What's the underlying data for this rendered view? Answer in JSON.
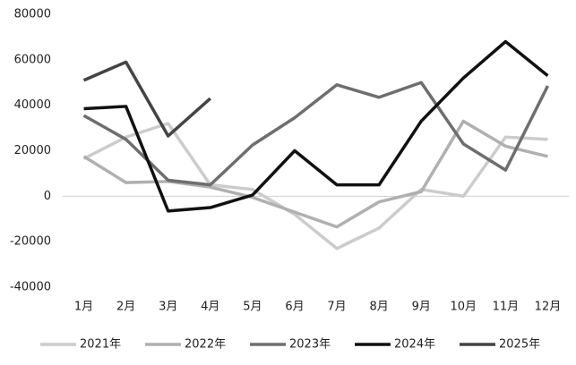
{
  "chart_data": {
    "type": "line",
    "categories": [
      "1月",
      "2月",
      "3月",
      "4月",
      "5月",
      "6月",
      "7月",
      "8月",
      "9月",
      "10月",
      "11月",
      "12月"
    ],
    "series": [
      {
        "name": "2021年",
        "color": "#cccccc",
        "values": [
          16500,
          26000,
          32000,
          5000,
          3000,
          -8000,
          -23000,
          -14000,
          3000,
          0,
          26000,
          25000
        ]
      },
      {
        "name": "2022年",
        "color": "#b0b0b0",
        "values": [
          17500,
          6000,
          6500,
          4000,
          -500,
          -7000,
          -13500,
          -2500,
          2000,
          33000,
          22000,
          17500
        ]
      },
      {
        "name": "2023年",
        "color": "#6e6e6e",
        "values": [
          35500,
          25000,
          7000,
          5000,
          22500,
          34500,
          49000,
          43500,
          50000,
          23000,
          11500,
          48500
        ]
      },
      {
        "name": "2024年",
        "color": "#111111",
        "values": [
          38500,
          39500,
          -6500,
          -5000,
          500,
          20000,
          5000,
          5000,
          33000,
          52000,
          68000,
          53000
        ]
      },
      {
        "name": "2025年",
        "color": "#444444",
        "values": [
          51000,
          59000,
          26500,
          43000,
          null,
          null,
          null,
          null,
          null,
          null,
          null,
          null
        ]
      }
    ],
    "ylim": [
      -40000,
      80000
    ],
    "yticks": [
      -40000,
      -20000,
      0,
      20000,
      40000,
      60000,
      80000
    ],
    "legend": "bottom"
  }
}
